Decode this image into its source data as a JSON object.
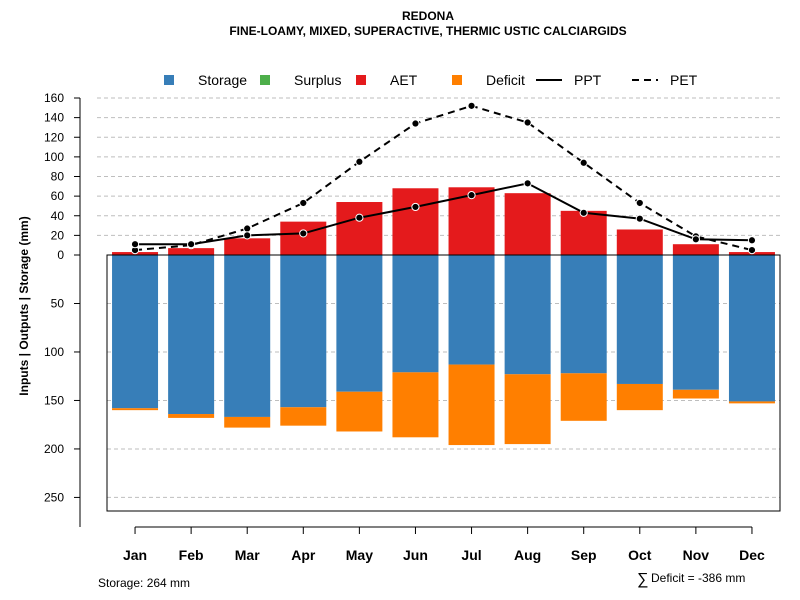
{
  "chart_data": {
    "type": "bar",
    "title": "REDONA",
    "subtitle": "FINE-LOAMY, MIXED, SUPERACTIVE, THERMIC USTIC CALCIARGIDS",
    "ylabel": "Inputs | Outputs | Storage     (mm)",
    "categories": [
      "Jan",
      "Feb",
      "Mar",
      "Apr",
      "May",
      "Jun",
      "Jul",
      "Aug",
      "Sep",
      "Oct",
      "Nov",
      "Dec"
    ],
    "upper_ylim": [
      0,
      160
    ],
    "upper_ticks": [
      "160",
      "140",
      "120",
      "100",
      "80",
      "60",
      "40",
      "20",
      "0"
    ],
    "lower_ylim": [
      0,
      264
    ],
    "lower_ticks": [
      "50",
      "100",
      "150",
      "200",
      "250"
    ],
    "legend": [
      {
        "label": "Storage",
        "kind": "square",
        "color": "#377EB8"
      },
      {
        "label": "Surplus",
        "kind": "square",
        "color": "#4DAF4A"
      },
      {
        "label": "AET",
        "kind": "square",
        "color": "#E41A1C"
      },
      {
        "label": "Deficit",
        "kind": "square",
        "color": "#FF7F00"
      },
      {
        "label": "PPT",
        "kind": "solid"
      },
      {
        "label": "PET",
        "kind": "dashed"
      }
    ],
    "series": [
      {
        "name": "AET",
        "values": [
          3,
          7,
          17,
          34,
          54,
          68,
          69,
          63,
          45,
          26,
          11,
          3
        ]
      },
      {
        "name": "Storage",
        "values": [
          158,
          164,
          167,
          157,
          141,
          121,
          113,
          123,
          122,
          133,
          139,
          151
        ]
      },
      {
        "name": "Deficit",
        "values": [
          2,
          4,
          11,
          19,
          41,
          67,
          83,
          72,
          49,
          27,
          9,
          2
        ]
      },
      {
        "name": "Surplus",
        "values": [
          0,
          0,
          0,
          0,
          0,
          0,
          0,
          0,
          0,
          0,
          0,
          0
        ]
      },
      {
        "name": "PPT",
        "values": [
          11,
          11,
          20,
          22,
          38,
          49,
          61,
          73,
          43,
          37,
          16,
          15
        ]
      },
      {
        "name": "PET",
        "values": [
          5,
          10,
          27,
          53,
          95,
          134,
          152,
          135,
          94,
          53,
          19,
          5
        ]
      }
    ],
    "colors": {
      "storage": "#377EB8",
      "surplus": "#4DAF4A",
      "aet": "#E41A1C",
      "deficit": "#FF7F00",
      "grid": "#BEBEBE"
    }
  },
  "footer": {
    "storage_note": "Storage: 264 mm",
    "deficit_symbol": "∑",
    "deficit_note": "Deficit = -386 mm"
  }
}
